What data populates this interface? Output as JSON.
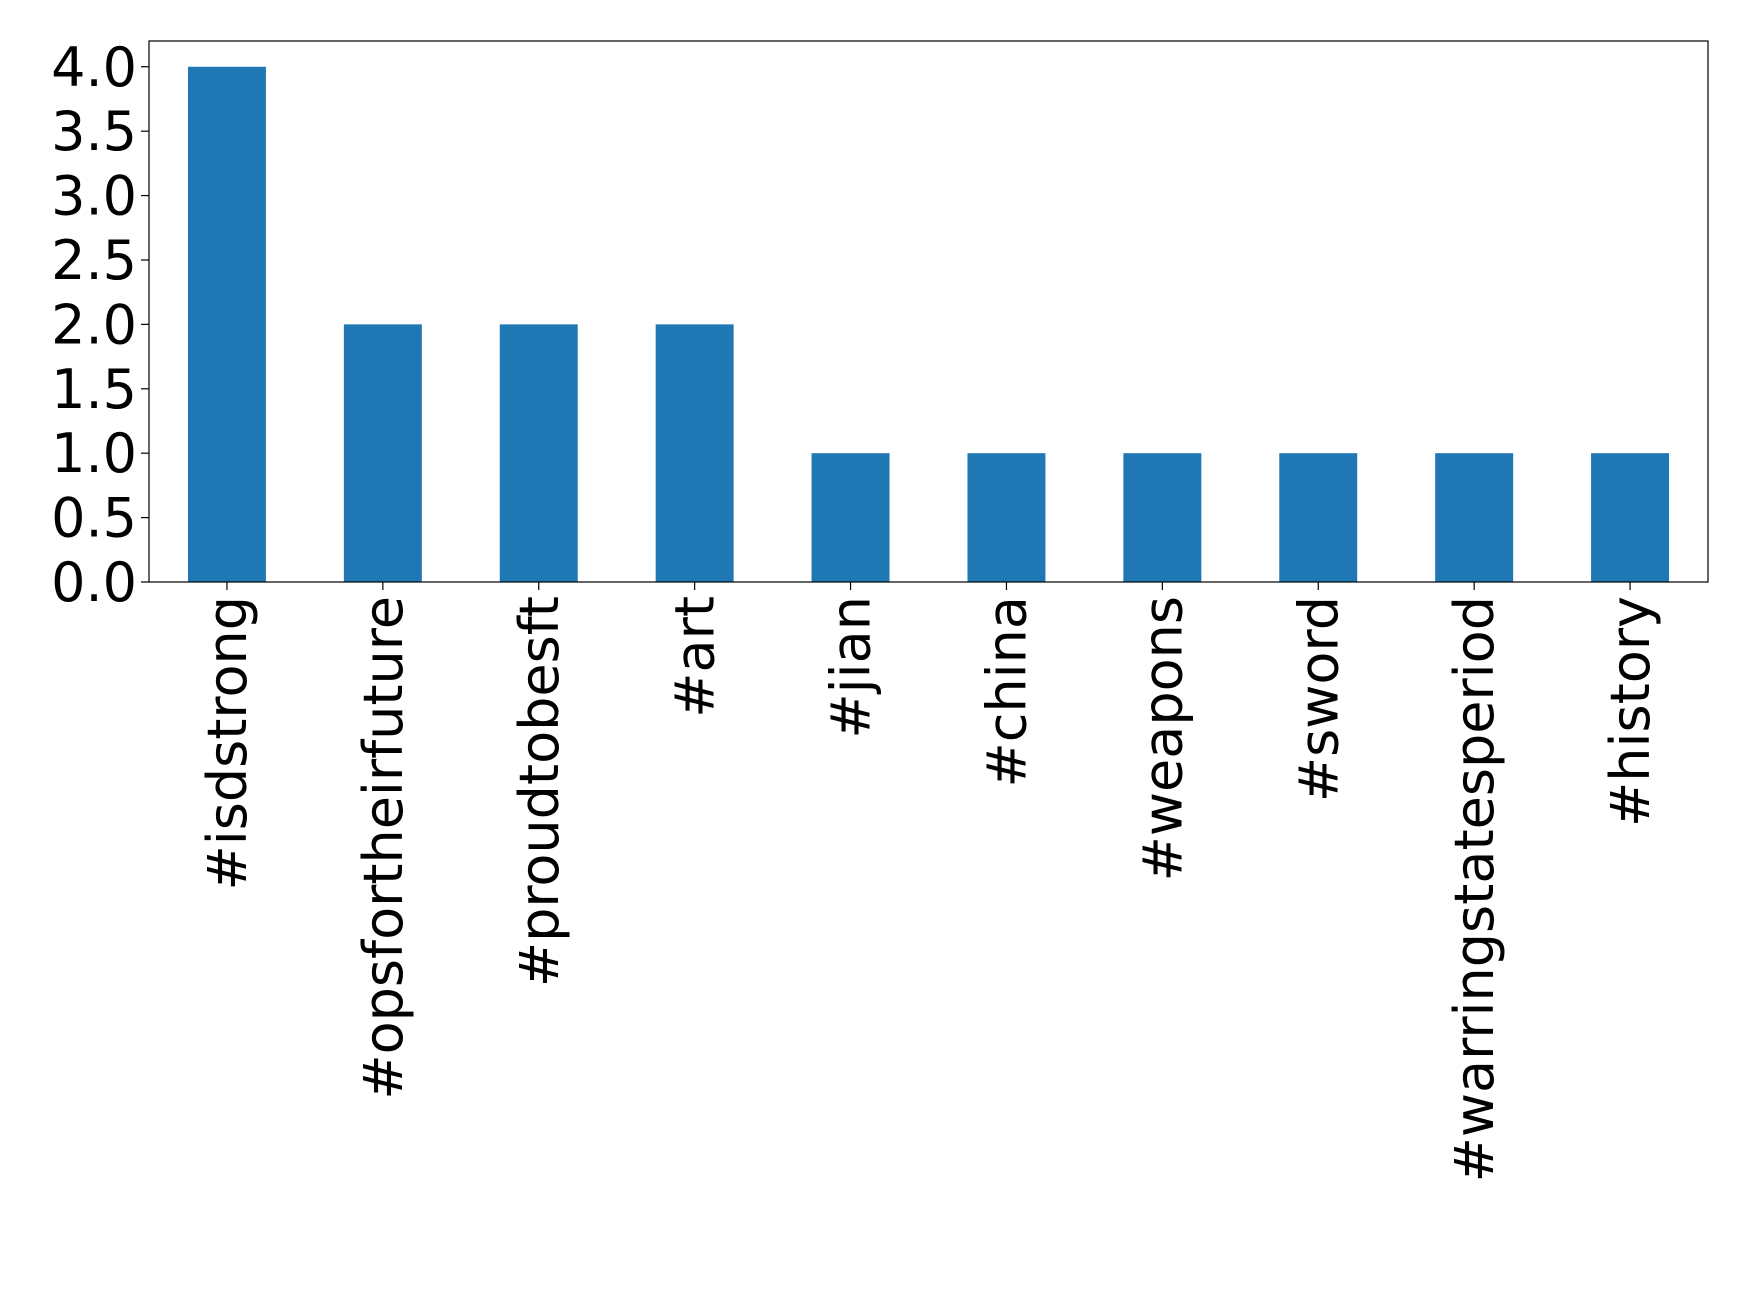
{
  "chart_data": {
    "type": "bar",
    "categories": [
      "#isdstrong",
      "#opsfortheirfuture",
      "#proudtobesft",
      "#art",
      "#jian",
      "#china",
      "#weapons",
      "#sword",
      "#warringstatesperiod",
      "#history"
    ],
    "values": [
      4,
      2,
      2,
      2,
      1,
      1,
      1,
      1,
      1,
      1
    ],
    "color": "#1f77b4",
    "ylim": [
      0,
      4.2
    ],
    "yticks": [
      {
        "value": 0,
        "label": "0.0"
      },
      {
        "value": 0.5,
        "label": "0.5"
      },
      {
        "value": 1,
        "label": "1.0"
      },
      {
        "value": 1.5,
        "label": "1.5"
      },
      {
        "value": 2,
        "label": "2.0"
      },
      {
        "value": 2.5,
        "label": "2.5"
      },
      {
        "value": 3,
        "label": "3.0"
      },
      {
        "value": 3.5,
        "label": "3.5"
      },
      {
        "value": 4,
        "label": "4.0"
      }
    ],
    "grid": false
  }
}
